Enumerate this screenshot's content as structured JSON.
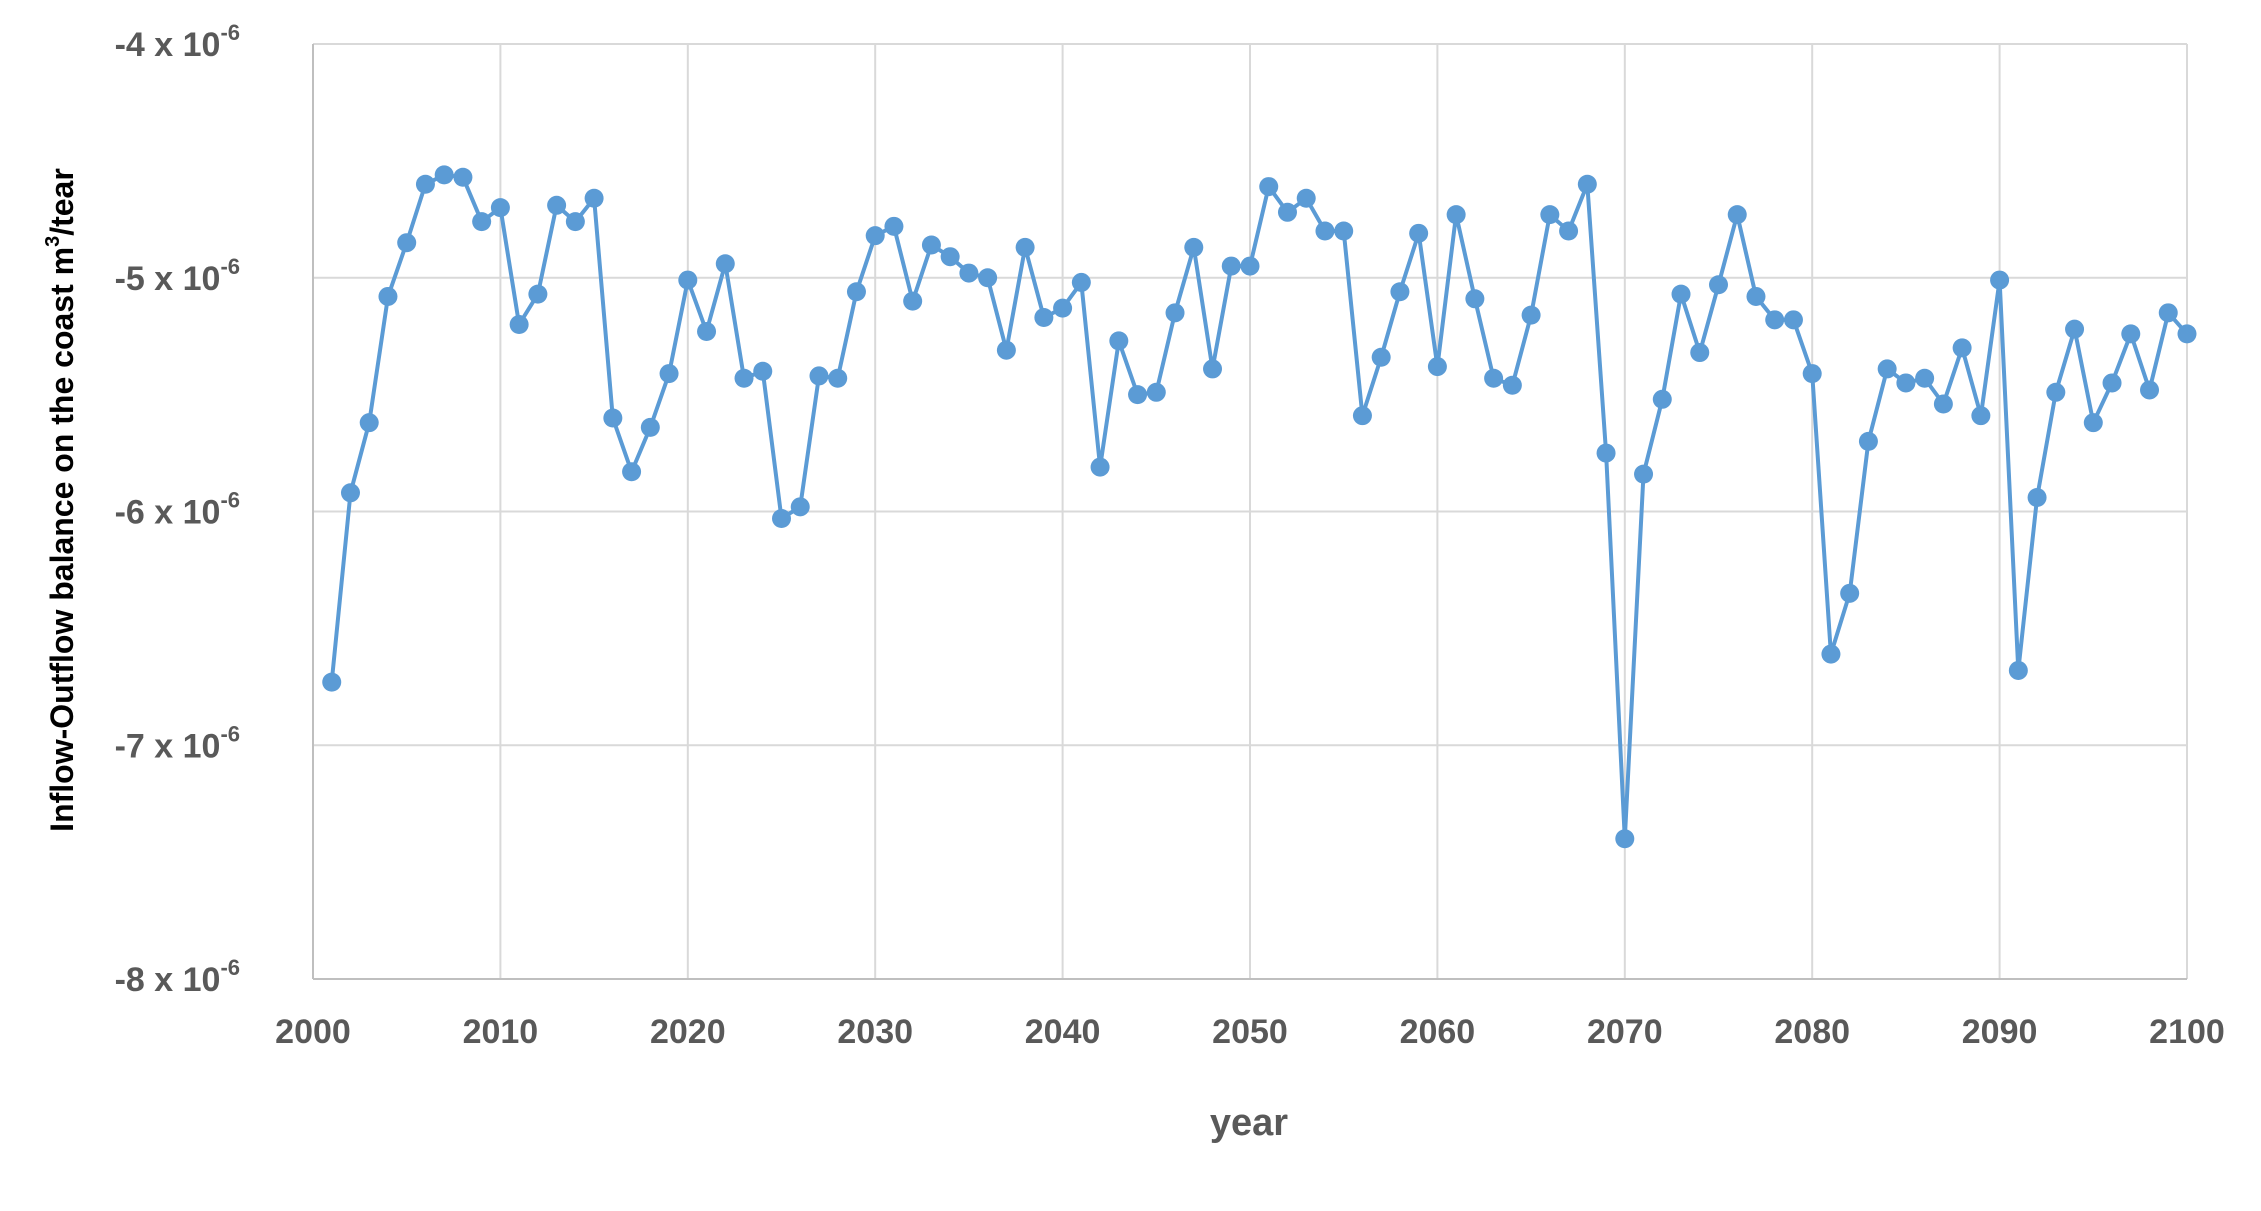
{
  "chart_data": {
    "type": "line",
    "xlabel": "year",
    "ylabel": "Inflow-Outflow balance on the coast m³/tear",
    "ylabel_parts": {
      "main": "Inflow-Outflow balance on the coast m",
      "sup": "3",
      "tail": "/tear"
    },
    "xlim": [
      2000,
      2100
    ],
    "ylim": [
      -8e-06,
      -4e-06
    ],
    "grid": true,
    "legend": "none",
    "x_ticks": [
      "2000",
      "2010",
      "2020",
      "2030",
      "2040",
      "2050",
      "2060",
      "2070",
      "2080",
      "2090",
      "2100"
    ],
    "y_ticks": [
      {
        "value": -4e-06,
        "mantissa": "-4 x 10",
        "exponent": "-6"
      },
      {
        "value": -5e-06,
        "mantissa": "-5 x 10",
        "exponent": "-6"
      },
      {
        "value": -6e-06,
        "mantissa": "-6 x 10",
        "exponent": "-6"
      },
      {
        "value": -7e-06,
        "mantissa": "-7 x 10",
        "exponent": "-6"
      },
      {
        "value": -8e-06,
        "mantissa": "-8 x 10",
        "exponent": "-6"
      }
    ],
    "series": [
      {
        "color": "#5B9BD5",
        "x": [
          2001,
          2002,
          2003,
          2004,
          2005,
          2006,
          2007,
          2008,
          2009,
          2010,
          2011,
          2012,
          2013,
          2014,
          2015,
          2016,
          2017,
          2018,
          2019,
          2020,
          2021,
          2022,
          2023,
          2024,
          2025,
          2026,
          2027,
          2028,
          2029,
          2030,
          2031,
          2032,
          2033,
          2034,
          2035,
          2036,
          2037,
          2038,
          2039,
          2040,
          2041,
          2042,
          2043,
          2044,
          2045,
          2046,
          2047,
          2048,
          2049,
          2050,
          2051,
          2052,
          2053,
          2054,
          2055,
          2056,
          2057,
          2058,
          2059,
          2060,
          2061,
          2062,
          2063,
          2064,
          2065,
          2066,
          2067,
          2068,
          2069,
          2070,
          2071,
          2072,
          2073,
          2074,
          2075,
          2076,
          2077,
          2078,
          2079,
          2080,
          2081,
          2082,
          2083,
          2084,
          2085,
          2086,
          2087,
          2088,
          2089,
          2090,
          2091,
          2092,
          2093,
          2094,
          2095,
          2096,
          2097,
          2098,
          2099,
          2100
        ],
        "y": [
          -6.73e-06,
          -5.92e-06,
          -5.62e-06,
          -5.08e-06,
          -4.85e-06,
          -4.6e-06,
          -4.56e-06,
          -4.57e-06,
          -4.76e-06,
          -4.7e-06,
          -5.2e-06,
          -5.07e-06,
          -4.69e-06,
          -4.76e-06,
          -4.66e-06,
          -5.6e-06,
          -5.83e-06,
          -5.64e-06,
          -5.41e-06,
          -5.01e-06,
          -5.23e-06,
          -4.94e-06,
          -5.43e-06,
          -5.4e-06,
          -6.03e-06,
          -5.98e-06,
          -5.42e-06,
          -5.43e-06,
          -5.06e-06,
          -4.82e-06,
          -4.78e-06,
          -5.1e-06,
          -4.86e-06,
          -4.91e-06,
          -4.98e-06,
          -5e-06,
          -5.31e-06,
          -4.87e-06,
          -5.17e-06,
          -5.13e-06,
          -5.02e-06,
          -5.81e-06,
          -5.27e-06,
          -5.5e-06,
          -5.49e-06,
          -5.15e-06,
          -4.87e-06,
          -5.39e-06,
          -4.95e-06,
          -4.95e-06,
          -4.61e-06,
          -4.72e-06,
          -4.66e-06,
          -4.8e-06,
          -4.8e-06,
          -5.59e-06,
          -5.34e-06,
          -5.06e-06,
          -4.81e-06,
          -5.38e-06,
          -4.73e-06,
          -5.09e-06,
          -5.43e-06,
          -5.46e-06,
          -5.16e-06,
          -4.73e-06,
          -4.8e-06,
          -4.6e-06,
          -5.75e-06,
          -7.4e-06,
          -5.84e-06,
          -5.52e-06,
          -5.07e-06,
          -5.32e-06,
          -5.03e-06,
          -4.73e-06,
          -5.08e-06,
          -5.18e-06,
          -5.18e-06,
          -5.41e-06,
          -6.61e-06,
          -6.35e-06,
          -5.7e-06,
          -5.39e-06,
          -5.45e-06,
          -5.43e-06,
          -5.54e-06,
          -5.3e-06,
          -5.59e-06,
          -5.01e-06,
          -6.68e-06,
          -5.94e-06,
          -5.49e-06,
          -5.22e-06,
          -5.62e-06,
          -5.45e-06,
          -5.24e-06,
          -5.48e-06,
          -5.15e-06,
          -5.24e-06
        ]
      }
    ]
  }
}
